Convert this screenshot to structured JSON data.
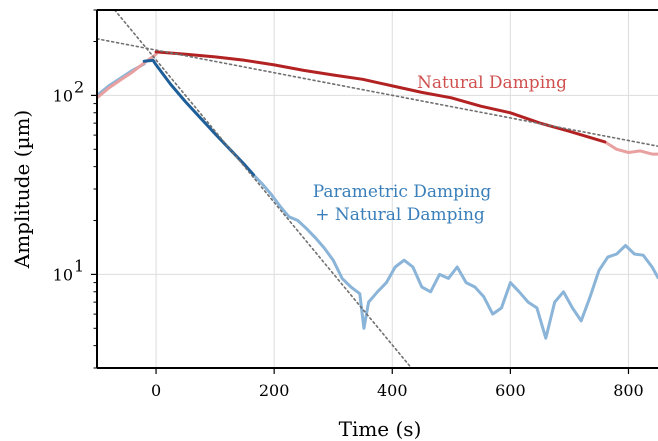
{
  "chart_data": {
    "type": "line",
    "title": "",
    "xlabel": "Time (s)",
    "ylabel": "Amplitude (µm)",
    "xlim": [
      -100,
      850
    ],
    "ylim": [
      3,
      300
    ],
    "y_scale": "log",
    "grid": true,
    "x_ticks": [
      {
        "value": 0,
        "label": "0"
      },
      {
        "value": 200,
        "label": "200"
      },
      {
        "value": 400,
        "label": "400"
      },
      {
        "value": 600,
        "label": "600"
      },
      {
        "value": 800,
        "label": "800"
      }
    ],
    "y_ticks": [
      {
        "value": 10,
        "base": "10",
        "exp": "1"
      },
      {
        "value": 100,
        "base": "10",
        "exp": "2"
      }
    ],
    "annotations": {
      "natural": "Natural Damping",
      "parametric_line1": "Parametric Damping",
      "parametric_line2": "+ Natural Damping"
    },
    "colors": {
      "natural_dark": "#b22222",
      "natural_light": "#e8a0a0",
      "natural_text": "#d05050",
      "parametric_dark": "#1f5f99",
      "parametric_light": "#8ab4d8",
      "parametric_text": "#3a7fba",
      "fit": "#707070",
      "grid": "#dddddd"
    },
    "series": [
      {
        "role": "natural-lead-in",
        "x": [
          -100,
          -80,
          -60,
          -40,
          -20,
          0
        ],
        "y": [
          97,
          110,
          122,
          135,
          152,
          170
        ]
      },
      {
        "role": "natural",
        "x": [
          0,
          50,
          100,
          150,
          200,
          250,
          300,
          350,
          400,
          450,
          500,
          550,
          600,
          650,
          700,
          760
        ],
        "y": [
          175,
          170,
          164,
          157,
          148,
          138,
          130,
          123,
          113,
          104,
          97,
          87,
          80,
          70,
          63,
          55
        ]
      },
      {
        "role": "natural-tail",
        "x": [
          760,
          780,
          800,
          820,
          840,
          850
        ],
        "y": [
          55,
          50,
          48,
          49,
          47,
          47
        ]
      },
      {
        "role": "natural-fit",
        "x": [
          -100,
          850
        ],
        "y": [
          207,
          52
        ]
      },
      {
        "role": "parametric-lead-in",
        "x": [
          -100,
          -80,
          -60,
          -40,
          -20
        ],
        "y": [
          100,
          113,
          125,
          138,
          150
        ]
      },
      {
        "role": "parametric",
        "x": [
          -20,
          -5,
          0,
          25,
          50,
          75,
          100,
          125,
          150,
          165
        ],
        "y": [
          155,
          157,
          148,
          115,
          92,
          75,
          61,
          50,
          41,
          36
        ]
      },
      {
        "role": "parametric-noise",
        "x": [
          165,
          180,
          195,
          210,
          225,
          240,
          255,
          270,
          285,
          300,
          315,
          330,
          345,
          352,
          360,
          375,
          390,
          405,
          420,
          435,
          450,
          465,
          480,
          495,
          510,
          525,
          540,
          555,
          570,
          585,
          600,
          615,
          630,
          645,
          660,
          675,
          690,
          705,
          720,
          735,
          750,
          765,
          780,
          795,
          810,
          825,
          840,
          850
        ],
        "y": [
          36,
          32,
          28,
          24,
          21,
          20,
          18,
          16,
          14,
          12,
          9.5,
          8.5,
          7.8,
          5.0,
          7.0,
          8.0,
          9.0,
          11.0,
          12.0,
          11.0,
          8.5,
          8.0,
          10.0,
          9.5,
          11.0,
          9.0,
          8.5,
          7.5,
          6.0,
          6.5,
          9.0,
          8.0,
          7.0,
          6.5,
          4.4,
          7.0,
          8.0,
          6.5,
          5.5,
          7.5,
          10.5,
          12.5,
          13.0,
          14.5,
          13.0,
          12.8,
          11.0,
          9.6
        ]
      },
      {
        "role": "parametric-fit",
        "x": [
          -70,
          440
        ],
        "y": [
          300,
          2.8
        ]
      }
    ]
  }
}
